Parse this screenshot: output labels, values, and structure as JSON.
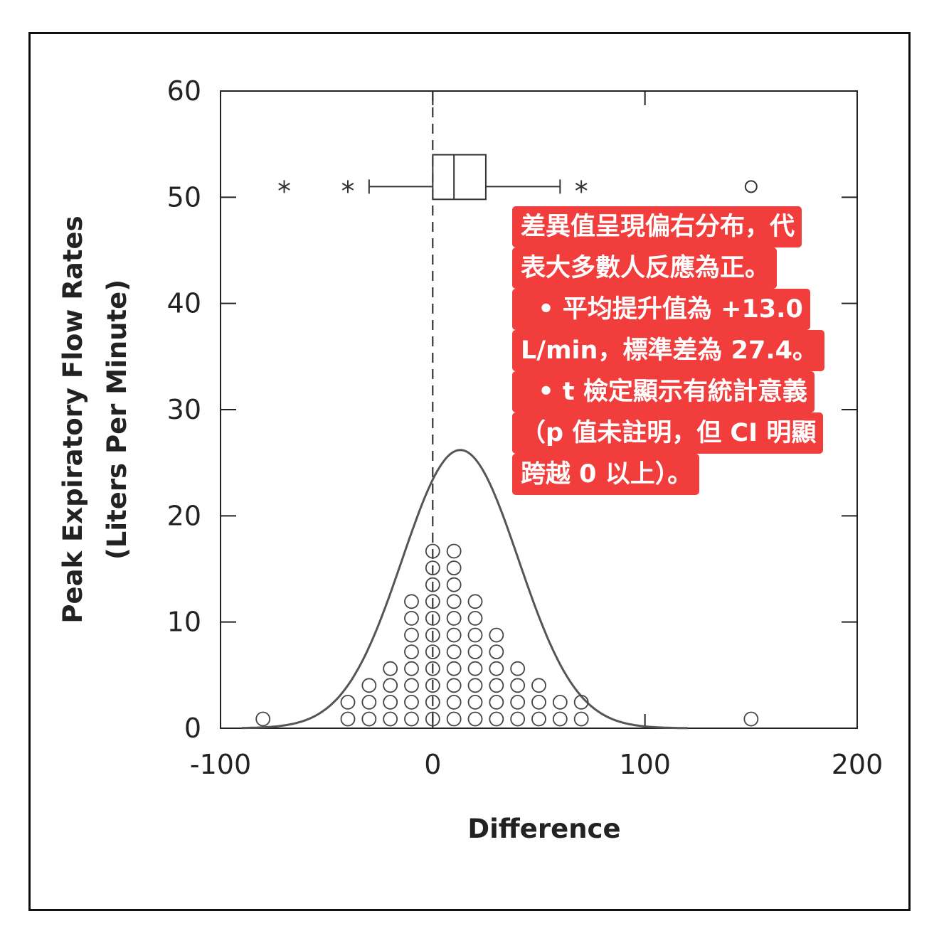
{
  "chart_data": {
    "type": "scatter",
    "title": "",
    "xlabel": "Difference",
    "ylabel_line1": "Peak Expiratory Flow Rates",
    "ylabel_line2": "(Liters Per Minute)",
    "xlim": [
      -100,
      200
    ],
    "ylim": [
      0,
      60
    ],
    "xticks": [
      "-100",
      "0",
      "100",
      "200"
    ],
    "yticks": [
      "0",
      "10",
      "20",
      "30",
      "40",
      "50",
      "60"
    ],
    "reference_line_x": 0,
    "dot_histogram": {
      "bin_values": [
        -80,
        -40,
        -30,
        -20,
        -10,
        0,
        10,
        20,
        30,
        40,
        50,
        60,
        70,
        150
      ],
      "counts": [
        1,
        2,
        3,
        4,
        8,
        11,
        11,
        8,
        6,
        4,
        3,
        2,
        2,
        1
      ]
    },
    "normal_curve": {
      "mean": 13.0,
      "sd": 27.4,
      "peak": 26.2
    },
    "boxplot": {
      "y": 51,
      "q1": 0,
      "median": 10,
      "q3": 25,
      "whisker_low": -30,
      "whisker_high": 60,
      "box_height": 4.2,
      "outliers_star": [
        -70,
        -40,
        70
      ],
      "outliers_circle": [
        150
      ]
    }
  },
  "annotation": {
    "lines": [
      "差異值呈現偏右分布，代",
      "表大多數人反應為正。",
      "  • 平均提升值為 +13.0",
      "L/min，標準差為 27.4。",
      "  • t 檢定顯示有統計意義",
      "（p 值未註明，但 CI 明顯",
      "跨越 0 以上）。"
    ],
    "background_color": "#f23d3d",
    "text_color": "#ffffff"
  }
}
